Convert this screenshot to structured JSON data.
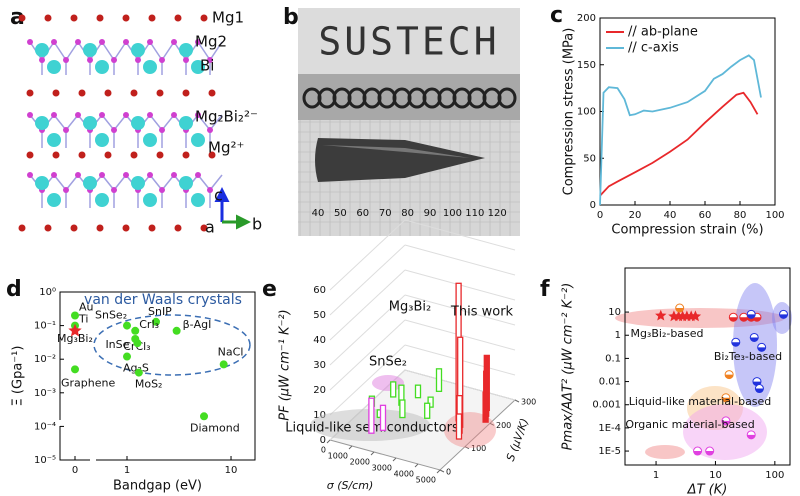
{
  "panel_labels": [
    "a",
    "b",
    "c",
    "d",
    "e",
    "f"
  ],
  "structure": {
    "atom_labels": [
      "Mg1",
      "Mg2",
      "Bi",
      "Mg₂Bi₂²⁻",
      "Mg²⁺"
    ],
    "axis_labels": [
      "c",
      "a",
      "b"
    ]
  },
  "photo": {
    "text": "SUSTECH",
    "ruler_labels": [
      "40",
      "50",
      "60",
      "70",
      "80",
      "90",
      "100",
      "110",
      "120"
    ]
  },
  "chart_data": [
    {
      "type": "line",
      "xlabel": "Compression strain (%)",
      "ylabel": "Compression stress (MPa)",
      "xlim": [
        0,
        100
      ],
      "xticks": [
        0,
        20,
        40,
        60,
        80,
        100
      ],
      "ylim": [
        0,
        200
      ],
      "yticks": [
        0,
        50,
        100,
        150,
        200
      ],
      "legend": "upper left",
      "series": [
        {
          "name": "// ab-plane",
          "color": "#e8282b",
          "x": [
            0,
            5,
            10,
            20,
            30,
            40,
            50,
            60,
            70,
            78,
            82,
            86,
            90
          ],
          "values": [
            10,
            20,
            25,
            35,
            45,
            57,
            70,
            88,
            105,
            118,
            120,
            110,
            97
          ]
        },
        {
          "name": "// c-axis",
          "color": "#5fb8d8",
          "x": [
            0,
            2,
            5,
            10,
            14,
            17,
            20,
            25,
            30,
            40,
            50,
            60,
            65,
            70,
            75,
            80,
            85,
            88,
            92
          ],
          "values": [
            0,
            120,
            126,
            125,
            113,
            96,
            97,
            101,
            100,
            104,
            110,
            122,
            135,
            140,
            148,
            155,
            160,
            155,
            115
          ]
        }
      ]
    },
    {
      "type": "scatter",
      "xlabel": "Bandgap (eV)",
      "ylabel": "Ξ (Gpa⁻¹)",
      "annotation": "van der Waals crystals",
      "xscale": "log",
      "yscale": "log",
      "xlim": [
        0,
        17
      ],
      "xticks": [
        0,
        1,
        10
      ],
      "ylim": [
        1e-05,
        1
      ],
      "yticks": [
        {
          "value": 1e-05,
          "label": "10⁻⁵"
        },
        {
          "value": 0.0001,
          "label": "10⁻⁴"
        },
        {
          "value": 0.001,
          "label": "10⁻³"
        },
        {
          "value": 0.01,
          "label": "10⁻²"
        },
        {
          "value": 0.1,
          "label": "10⁻¹"
        },
        {
          "value": 1,
          "label": "10⁰"
        }
      ],
      "labels": [
        "Au",
        "Ti",
        "Mg₃Bi₂",
        "Graphene",
        "SnSe₂",
        "SnIP",
        "CrI₃",
        "β-AgI",
        "CrCl₃",
        "InSe",
        "Ag₂S",
        "MoS₂",
        "NaCl",
        "Diamond"
      ],
      "x": [
        0,
        0,
        0,
        0,
        1.0,
        1.9,
        1.2,
        3.0,
        1.2,
        1.26,
        1.0,
        1.3,
        8.5,
        5.5
      ],
      "values": [
        0.2,
        0.1,
        0.07,
        0.005,
        0.1,
        0.13,
        0.07,
        0.07,
        0.04,
        0.03,
        0.012,
        0.004,
        0.007,
        0.0002
      ],
      "colors": [
        "#44dd22",
        "#44dd22",
        "#e8282b",
        "#44dd22",
        "#44dd22",
        "#44dd22",
        "#44dd22",
        "#44dd22",
        "#44dd22",
        "#44dd22",
        "#44dd22",
        "#44dd22",
        "#44dd22",
        "#44dd22"
      ],
      "markers": [
        "circle",
        "circle",
        "star",
        "circle",
        "circle",
        "circle",
        "circle",
        "circle",
        "circle",
        "circle",
        "circle",
        "circle",
        "circle",
        "circle"
      ]
    },
    {
      "type": "bar3d",
      "zlabel": "PF (μW cm⁻¹ K⁻²)",
      "xlabel": "σ (S/cm)",
      "ylabel": "S (μV/K)",
      "zlim": [
        0,
        60
      ],
      "zticks": [
        0,
        10,
        20,
        30,
        40,
        50,
        60
      ],
      "xlim": [
        0,
        5000
      ],
      "xticks": [
        0,
        1000,
        2000,
        3000,
        4000,
        5000
      ],
      "ylim": [
        0,
        300
      ],
      "yticks": [
        0,
        100,
        200,
        300
      ],
      "series": [
        {
          "name": "Liquid-like semiconductors",
          "color": "#44dd22",
          "filled": false,
          "sigma": [
            200,
            600,
            900,
            1200,
            1500,
            1700,
            2000,
            2300,
            2600
          ],
          "seebeck": [
            150,
            200,
            120,
            180,
            220,
            140,
            260,
            200,
            160
          ],
          "values": [
            4,
            6,
            3,
            8,
            5,
            7,
            9,
            4,
            6
          ]
        },
        {
          "name": "SnSe₂",
          "color": "#e040e0",
          "filled": false,
          "sigma": [
            1200,
            1500
          ],
          "seebeck": [
            60,
            80
          ],
          "values": [
            14,
            10
          ]
        },
        {
          "name": "Mg₃Bi₂",
          "color": "#e8282b",
          "filled": false,
          "sigma": [
            3800,
            4100,
            4300,
            4500
          ],
          "seebeck": [
            180,
            160,
            140,
            120
          ],
          "values": [
            55,
            36,
            15,
            10
          ]
        },
        {
          "name": "This work",
          "color": "#e8282b",
          "filled": true,
          "sigma": [
            4400,
            4600,
            4800
          ],
          "seebeck": [
            240,
            220,
            200
          ],
          "values": [
            22,
            18,
            12
          ]
        }
      ]
    },
    {
      "type": "scatter",
      "xscale": "log",
      "yscale": "log",
      "xlabel": "ΔT (K)",
      "ylabel": "Pmax/AΔT² (μW cm⁻² K⁻²)",
      "xlim": [
        0.3,
        180
      ],
      "xticks": [
        1,
        10,
        100
      ],
      "ylim": [
        2.5e-06,
        800
      ],
      "yticks": [
        {
          "value": 1e-05,
          "label": "1E-5"
        },
        {
          "value": 0.0001,
          "label": "1E-4"
        },
        0.001,
        0.01,
        0.1,
        1,
        10
      ],
      "series": [
        {
          "name": "Mg₃Bi₂-based",
          "color": "#e8282b",
          "marker": "star",
          "x": [
            1.2,
            2,
            2.4,
            2.8,
            3.3,
            3.9,
            4.6,
            20,
            30,
            40,
            50
          ],
          "values": [
            7,
            6.5,
            6.5,
            6.5,
            6.5,
            6.5,
            6.5,
            6,
            6,
            6,
            6
          ]
        },
        {
          "name": "Bi₂Te₃-based",
          "color": "#2233dd",
          "marker": "half",
          "x": [
            22,
            40,
            45,
            50,
            55,
            60,
            140
          ],
          "values": [
            0.5,
            8,
            0.8,
            0.01,
            0.005,
            0.3,
            8
          ]
        },
        {
          "name": "Liquid-like material-based",
          "color": "#f08020",
          "marker": "half",
          "x": [
            2.5,
            15,
            17
          ],
          "values": [
            15,
            0.002,
            0.02
          ]
        },
        {
          "name": "Organic material-based",
          "color": "#e040e0",
          "marker": "half",
          "x": [
            5,
            8,
            15,
            40
          ],
          "values": [
            1e-05,
            1e-05,
            0.0002,
            5e-05
          ]
        }
      ]
    }
  ]
}
